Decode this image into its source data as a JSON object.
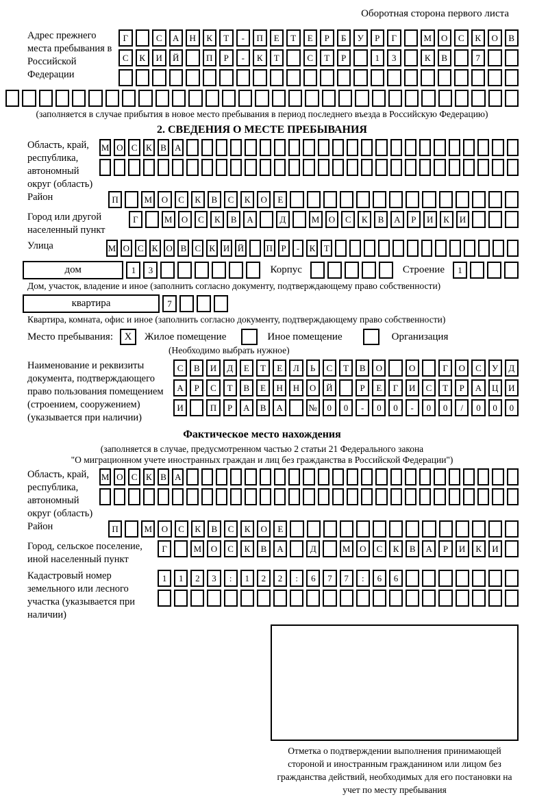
{
  "header_note": "Оборотная сторона первого листа",
  "colors": {
    "ink": "#000000",
    "paper": "#ffffff"
  },
  "prev_address": {
    "label": "Адрес прежнего места пребывания в Российской Федерации",
    "row1": [
      "Г",
      "",
      "С",
      "А",
      "Н",
      "К",
      "Т",
      "-",
      "П",
      "Е",
      "Т",
      "Е",
      "Р",
      "Б",
      "У",
      "Р",
      "Г",
      "",
      "М",
      "О",
      "С",
      "К",
      "О",
      "В"
    ],
    "row2": [
      "С",
      "К",
      "И",
      "Й",
      "",
      "П",
      "Р",
      "-",
      "К",
      "Т",
      "",
      "С",
      "Т",
      "Р",
      "",
      "1",
      "3",
      "",
      "К",
      "В",
      "",
      "7",
      "",
      ""
    ],
    "row3": [
      "",
      "",
      "",
      "",
      "",
      "",
      "",
      "",
      "",
      "",
      "",
      "",
      "",
      "",
      "",
      "",
      "",
      "",
      "",
      "",
      "",
      "",
      "",
      ""
    ],
    "row4": [
      "",
      "",
      "",
      "",
      "",
      "",
      "",
      "",
      "",
      "",
      "",
      "",
      "",
      "",
      "",
      "",
      "",
      "",
      "",
      "",
      "",
      "",
      "",
      "",
      "",
      "",
      "",
      "",
      "",
      "",
      ""
    ],
    "caption": "(заполняется в случае прибытия в новое место пребывания в период последнего въезда в Российскую Федерацию)"
  },
  "section2": {
    "title": "2. СВЕДЕНИЯ О МЕСТЕ ПРЕБЫВАНИЯ",
    "region_label": "Область, край, республика, автономный округ (область)",
    "region_row1": [
      "М",
      "О",
      "С",
      "К",
      "В",
      "А",
      "",
      "",
      "",
      "",
      "",
      "",
      "",
      "",
      "",
      "",
      "",
      "",
      "",
      "",
      "",
      "",
      "",
      "",
      "",
      "",
      "",
      "",
      ""
    ],
    "region_row2": [
      "",
      "",
      "",
      "",
      "",
      "",
      "",
      "",
      "",
      "",
      "",
      "",
      "",
      "",
      "",
      "",
      "",
      "",
      "",
      "",
      "",
      "",
      "",
      "",
      "",
      "",
      "",
      "",
      ""
    ],
    "district_label": "Район",
    "district_row": [
      "П",
      "",
      "М",
      "О",
      "С",
      "К",
      "В",
      "С",
      "К",
      "О",
      "Е",
      "",
      "",
      "",
      "",
      "",
      "",
      "",
      "",
      "",
      "",
      "",
      "",
      "",
      ""
    ],
    "city_label": "Город или другой населенный пункт",
    "city_row": [
      "Г",
      "",
      "М",
      "О",
      "С",
      "К",
      "В",
      "А",
      "",
      "Д",
      "",
      "М",
      "О",
      "С",
      "К",
      "В",
      "А",
      "Р",
      "И",
      "К",
      "И",
      "",
      "",
      ""
    ],
    "street_label": "Улица",
    "street_row": [
      "М",
      "О",
      "С",
      "К",
      "О",
      "В",
      "С",
      "К",
      "И",
      "Й",
      "",
      "П",
      "Р",
      "-",
      "К",
      "Т",
      "",
      "",
      "",
      "",
      "",
      "",
      "",
      "",
      "",
      "",
      "",
      "",
      ""
    ],
    "house_label": "дом",
    "house_row": [
      "1",
      "3",
      "",
      "",
      "",
      "",
      "",
      ""
    ],
    "korpus_label": "Корпус",
    "korpus_row": [
      "",
      "",
      "",
      "",
      ""
    ],
    "stroenie_label": "Строение",
    "stroenie_row": [
      "1",
      "",
      "",
      ""
    ],
    "house_caption": "Дом, участок, владение и иное (заполнить согласно документу, подтверждающему право собственности)",
    "apartment_label": "квартира",
    "apartment_row": [
      "7",
      "",
      "",
      ""
    ],
    "apartment_caption": "Квартира, комната, офис и иное (заполнить согласно документу, подтверждающему право собственности)",
    "stay_label": "Место пребывания:",
    "stay_options": [
      {
        "label": "Жилое помещение",
        "mark": "X"
      },
      {
        "label": "Иное помещение",
        "mark": ""
      },
      {
        "label": "Организация",
        "mark": ""
      }
    ],
    "stay_caption": "(Необходимо выбрать нужное)",
    "doc_label": "Наименование и реквизиты документа, подтверждающего право пользования помещением (строением, сооружением) (указывается при наличии)",
    "doc_row1": [
      "С",
      "В",
      "И",
      "Д",
      "Е",
      "Т",
      "Е",
      "Л",
      "Ь",
      "С",
      "Т",
      "В",
      "О",
      "",
      "О",
      "",
      "Г",
      "О",
      "С",
      "У",
      "Д"
    ],
    "doc_row2": [
      "А",
      "Р",
      "С",
      "Т",
      "В",
      "Е",
      "Н",
      "Н",
      "О",
      "Й",
      "",
      "Р",
      "Е",
      "Г",
      "И",
      "С",
      "Т",
      "Р",
      "А",
      "Ц",
      "И"
    ],
    "doc_row3": [
      "И",
      "",
      "П",
      "Р",
      "А",
      "В",
      "А",
      "",
      "№",
      "0",
      "0",
      "-",
      "0",
      "0",
      "-",
      "0",
      "0",
      "/",
      "0",
      "0",
      "0"
    ]
  },
  "actual_location": {
    "title": "Фактическое место нахождения",
    "caption1": "(заполняется в случае, предусмотренном частью 2 статьи 21 Федерального закона",
    "caption2": "\"О миграционном учете иностранных граждан и лиц без гражданства в Российской Федерации\")",
    "region_label": "Область, край, республика, автономный округ (область)",
    "region_row1": [
      "М",
      "О",
      "С",
      "К",
      "В",
      "А",
      "",
      "",
      "",
      "",
      "",
      "",
      "",
      "",
      "",
      "",
      "",
      "",
      "",
      "",
      "",
      "",
      "",
      "",
      "",
      "",
      "",
      "",
      ""
    ],
    "region_row2": [
      "",
      "",
      "",
      "",
      "",
      "",
      "",
      "",
      "",
      "",
      "",
      "",
      "",
      "",
      "",
      "",
      "",
      "",
      "",
      "",
      "",
      "",
      "",
      "",
      "",
      "",
      "",
      "",
      ""
    ],
    "district_label": "Район",
    "district_row": [
      "П",
      "",
      "М",
      "О",
      "С",
      "К",
      "В",
      "С",
      "К",
      "О",
      "Е",
      "",
      "",
      "",
      "",
      "",
      "",
      "",
      "",
      "",
      "",
      "",
      "",
      "",
      ""
    ],
    "city_label": "Город, сельское поселение, иной населенный пункт",
    "city_row": [
      "Г",
      "",
      "М",
      "О",
      "С",
      "К",
      "В",
      "А",
      "",
      "Д",
      "",
      "М",
      "О",
      "С",
      "К",
      "В",
      "А",
      "Р",
      "И",
      "К",
      "И",
      ""
    ],
    "cadastral_label": "Кадастровый номер земельного или лесного участка (указывается при наличии)",
    "cadastral_row1": [
      "1",
      "1",
      "2",
      "3",
      ":",
      "1",
      "2",
      "2",
      ":",
      "6",
      "7",
      "7",
      ":",
      "6",
      "6",
      "",
      "",
      "",
      "",
      "",
      "",
      ""
    ],
    "cadastral_row2": [
      "",
      "",
      "",
      "",
      "",
      "",
      "",
      "",
      "",
      "",
      "",
      "",
      "",
      "",
      "",
      "",
      "",
      "",
      "",
      "",
      "",
      ""
    ],
    "stamp_caption": "Отметка о подтверждении выполнения принимающей стороной и иностранным гражданином или лицом без гражданства действий, необходимых для его постановки на учет по месту пребывания"
  }
}
